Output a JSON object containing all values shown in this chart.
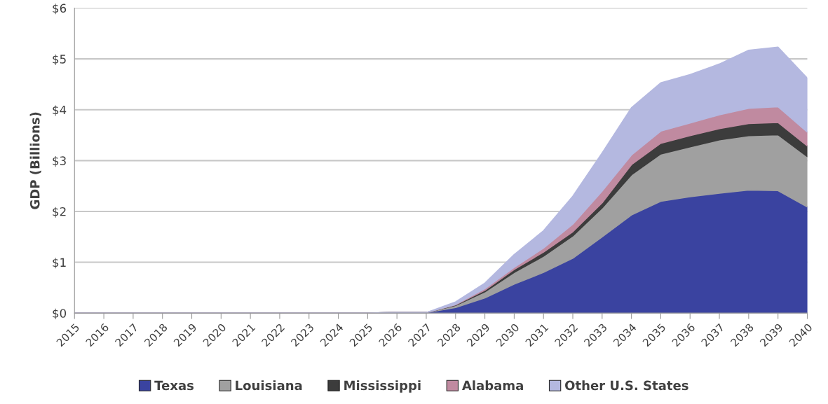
{
  "chart_data": {
    "type": "area",
    "stacked": true,
    "ylabel": "GDP (Billions)",
    "categories": [
      "2015",
      "2016",
      "2017",
      "2018",
      "2019",
      "2020",
      "2021",
      "2022",
      "2023",
      "2024",
      "2025",
      "2026",
      "2027",
      "2028",
      "2029",
      "2030",
      "2031",
      "2032",
      "2033",
      "2034",
      "2035",
      "2036",
      "2037",
      "2038",
      "2039",
      "2040"
    ],
    "series": [
      {
        "name": "Texas",
        "color": "#3a43a0",
        "values": [
          0,
          0,
          0,
          0,
          0,
          0,
          0,
          0,
          0,
          0,
          0,
          0.01,
          0.01,
          0.11,
          0.3,
          0.57,
          0.8,
          1.08,
          1.5,
          1.93,
          2.2,
          2.29,
          2.36,
          2.42,
          2.41,
          2.09
        ]
      },
      {
        "name": "Louisiana",
        "color": "#a0a0a0",
        "values": [
          0,
          0,
          0,
          0,
          0,
          0,
          0,
          0,
          0,
          0,
          0,
          0,
          0,
          0.04,
          0.12,
          0.23,
          0.32,
          0.44,
          0.57,
          0.79,
          0.93,
          0.98,
          1.05,
          1.07,
          1.1,
          0.99
        ]
      },
      {
        "name": "Mississippi",
        "color": "#3c3c3c",
        "values": [
          0,
          0,
          0,
          0,
          0,
          0,
          0,
          0,
          0,
          0,
          0,
          0,
          0,
          0.01,
          0.03,
          0.06,
          0.08,
          0.08,
          0.1,
          0.2,
          0.21,
          0.22,
          0.22,
          0.24,
          0.24,
          0.21
        ]
      },
      {
        "name": "Alabama",
        "color": "#c08aa0",
        "values": [
          0,
          0,
          0,
          0,
          0,
          0,
          0,
          0,
          0,
          0,
          0,
          0,
          0,
          0.01,
          0.03,
          0.04,
          0.08,
          0.15,
          0.23,
          0.19,
          0.24,
          0.25,
          0.27,
          0.3,
          0.31,
          0.27
        ]
      },
      {
        "name": "Other U.S. States",
        "color": "#b4b8e0",
        "values": [
          0,
          0,
          0,
          0,
          0,
          0,
          0,
          0,
          0,
          0,
          0,
          0,
          0,
          0.05,
          0.11,
          0.25,
          0.34,
          0.55,
          0.75,
          0.93,
          0.95,
          0.95,
          1.0,
          1.14,
          1.17,
          1.06
        ]
      }
    ],
    "ylim": [
      0,
      6
    ],
    "yticks": [
      {
        "value": 0,
        "label": "$0"
      },
      {
        "value": 1,
        "label": "$1"
      },
      {
        "value": 2,
        "label": "$2"
      },
      {
        "value": 3,
        "label": "$3"
      },
      {
        "value": 4,
        "label": "$4"
      },
      {
        "value": 5,
        "label": "$5"
      },
      {
        "value": 6,
        "label": "$6"
      }
    ],
    "grid": "y",
    "legend": "bottom"
  }
}
